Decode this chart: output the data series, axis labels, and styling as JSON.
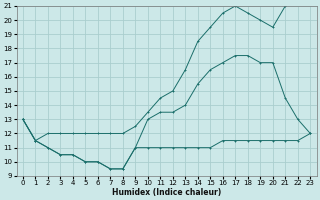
{
  "xlabel": "Humidex (Indice chaleur)",
  "bg_color": "#cce8e8",
  "grid_color": "#aacece",
  "line_color": "#1a6e6a",
  "xlim": [
    -0.5,
    23.5
  ],
  "ylim": [
    9,
    21
  ],
  "xticks": [
    0,
    1,
    2,
    3,
    4,
    5,
    6,
    7,
    8,
    9,
    10,
    11,
    12,
    13,
    14,
    15,
    16,
    17,
    18,
    19,
    20,
    21,
    22,
    23
  ],
  "yticks": [
    9,
    10,
    11,
    12,
    13,
    14,
    15,
    16,
    17,
    18,
    19,
    20,
    21
  ],
  "series_top_x": [
    0,
    1,
    2,
    3,
    4,
    5,
    6,
    7,
    8,
    9,
    10,
    11,
    12,
    13,
    14,
    15,
    16,
    17,
    18,
    19,
    20,
    21
  ],
  "series_top_y": [
    13,
    11.5,
    12,
    12,
    12,
    12,
    12,
    12,
    12,
    12.5,
    13.5,
    14.5,
    15,
    16.5,
    18.5,
    19.5,
    20.5,
    21,
    20.5,
    20,
    19.5,
    21
  ],
  "series_mid_x": [
    0,
    1,
    2,
    3,
    4,
    5,
    6,
    7,
    8,
    9,
    10,
    11,
    12,
    13,
    14,
    15,
    16,
    17,
    18,
    19,
    20,
    21,
    22,
    23
  ],
  "series_mid_y": [
    13,
    11.5,
    11,
    10.5,
    10.5,
    10,
    10,
    9.5,
    9.5,
    11,
    13,
    13.5,
    13.5,
    14,
    15.5,
    16.5,
    17,
    17.5,
    17.5,
    17,
    17,
    14.5,
    13,
    12
  ],
  "series_bot_x": [
    0,
    1,
    2,
    3,
    4,
    5,
    6,
    7,
    8,
    9,
    10,
    11,
    12,
    13,
    14,
    15,
    16,
    17,
    18,
    19,
    20,
    21,
    22,
    23
  ],
  "series_bot_y": [
    13,
    11.5,
    11,
    10.5,
    10.5,
    10,
    10,
    9.5,
    9.5,
    11,
    11,
    11,
    11,
    11,
    11,
    11,
    11.5,
    11.5,
    11.5,
    11.5,
    11.5,
    11.5,
    11.5,
    12
  ]
}
